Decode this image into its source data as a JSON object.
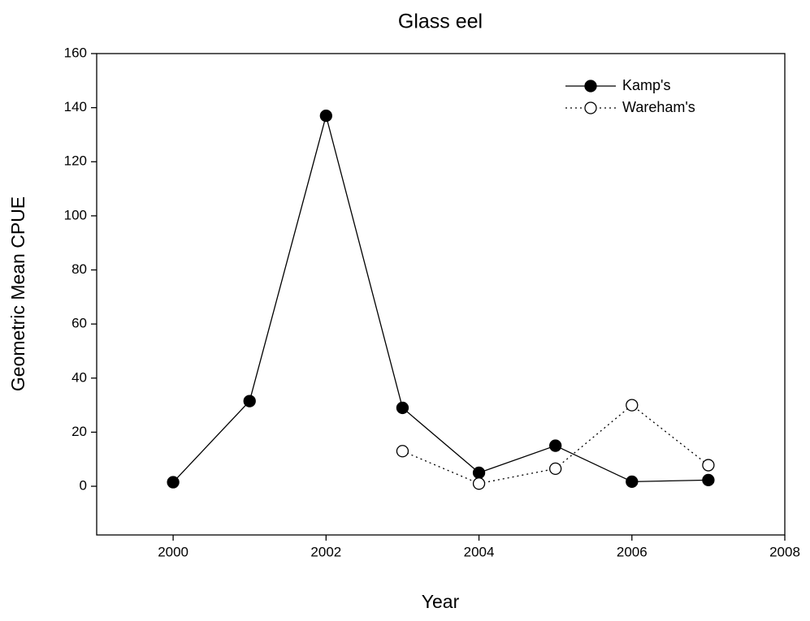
{
  "chart_data": {
    "type": "line",
    "title": "Glass eel",
    "x_label": "Year",
    "y_label": "Geometric Mean CPUE",
    "x": [
      2000,
      2001,
      2002,
      2003,
      2004,
      2005,
      2006,
      2007
    ],
    "series": [
      {
        "name": "Kamp's",
        "color": "#000000",
        "line_style": "solid",
        "marker_fill": "filled",
        "values": [
          1.5,
          31.5,
          137,
          29,
          5,
          15,
          1.7,
          2.3
        ]
      },
      {
        "name": "Wareham's",
        "color": "#000000",
        "line_style": "dotted",
        "marker_fill": "open",
        "values": [
          null,
          null,
          null,
          13,
          1,
          6.5,
          30,
          7.8
        ]
      }
    ],
    "xlim": [
      1999,
      2008
    ],
    "xticks": [
      2000,
      2002,
      2004,
      2006,
      2008
    ],
    "ylim": [
      -18,
      160
    ],
    "yticks": [
      0,
      20,
      40,
      60,
      80,
      100,
      120,
      140,
      160
    ],
    "grid": false,
    "legend": "upper right"
  }
}
